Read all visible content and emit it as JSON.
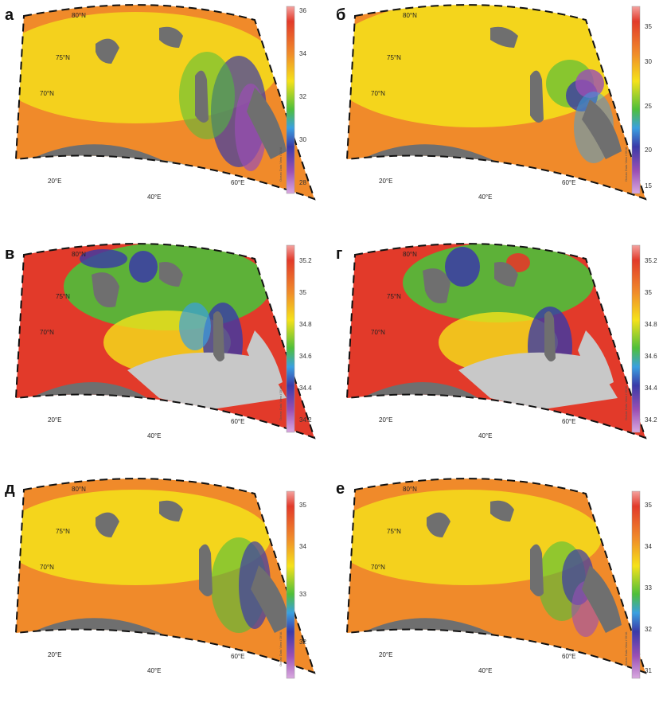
{
  "panels": [
    {
      "letter": "а",
      "lat_labels": [
        "80°N",
        "75°N",
        "70°N"
      ],
      "lon_labels": [
        "20°E",
        "40°E",
        "60°E"
      ],
      "colorbar": {
        "ticks": [
          "36",
          "34",
          "32",
          "30",
          "28"
        ],
        "credit": "Ocean Data View / DIVA"
      },
      "field": "surface-a",
      "land_mask": "grey"
    },
    {
      "letter": "б",
      "lat_labels": [
        "80°N",
        "75°N",
        "70°N"
      ],
      "lon_labels": [
        "20°E",
        "40°E",
        "60°E"
      ],
      "colorbar": {
        "ticks": [
          "35",
          "30",
          "25",
          "20",
          "15"
        ],
        "credit": "Ocean Data View / DIVA"
      },
      "field": "surface-b",
      "land_mask": "grey"
    },
    {
      "letter": "в",
      "lat_labels": [
        "80°N",
        "75°N",
        "70°N"
      ],
      "lon_labels": [
        "20°E",
        "40°E",
        "60°E"
      ],
      "colorbar": {
        "ticks": [
          "35.2",
          "35",
          "34.8",
          "34.6",
          "34.4",
          "34.2"
        ],
        "credit": "Ocean Data View / DIVA"
      },
      "field": "bottom-a",
      "land_mask": "grey+lightgrey"
    },
    {
      "letter": "г",
      "lat_labels": [
        "80°N",
        "75°N",
        "70°N"
      ],
      "lon_labels": [
        "20°E",
        "40°E",
        "60°E"
      ],
      "colorbar": {
        "ticks": [
          "35.2",
          "35",
          "34.8",
          "34.6",
          "34.4",
          "34.2"
        ],
        "credit": "Ocean Data View / DIVA"
      },
      "field": "bottom-b",
      "land_mask": "grey+lightgrey"
    },
    {
      "letter": "д",
      "lat_labels": [
        "80°N",
        "75°N",
        "70°N"
      ],
      "lon_labels": [
        "20°E",
        "40°E",
        "60°E"
      ],
      "colorbar": {
        "ticks": [
          "35",
          "34",
          "33",
          "32"
        ],
        "credit": "Ocean Data View / DIVA"
      },
      "field": "mean-a",
      "land_mask": "grey"
    },
    {
      "letter": "е",
      "lat_labels": [
        "80°N",
        "75°N",
        "70°N"
      ],
      "lon_labels": [
        "20°E",
        "40°E",
        "60°E"
      ],
      "colorbar": {
        "ticks": [
          "35",
          "34",
          "33",
          "32",
          "31"
        ],
        "credit": "Ocean Data View / DIVA"
      },
      "field": "mean-b",
      "land_mask": "grey"
    }
  ],
  "colors": {
    "land": "#6f6f6f",
    "no_data": "#c8c8c8",
    "scale": [
      "#f4a3a0",
      "#e23a2a",
      "#f08a2a",
      "#f5e21a",
      "#4fbf3a",
      "#3aa0e0",
      "#3a3aa8",
      "#9a4fb4",
      "#d9a9e0"
    ]
  }
}
